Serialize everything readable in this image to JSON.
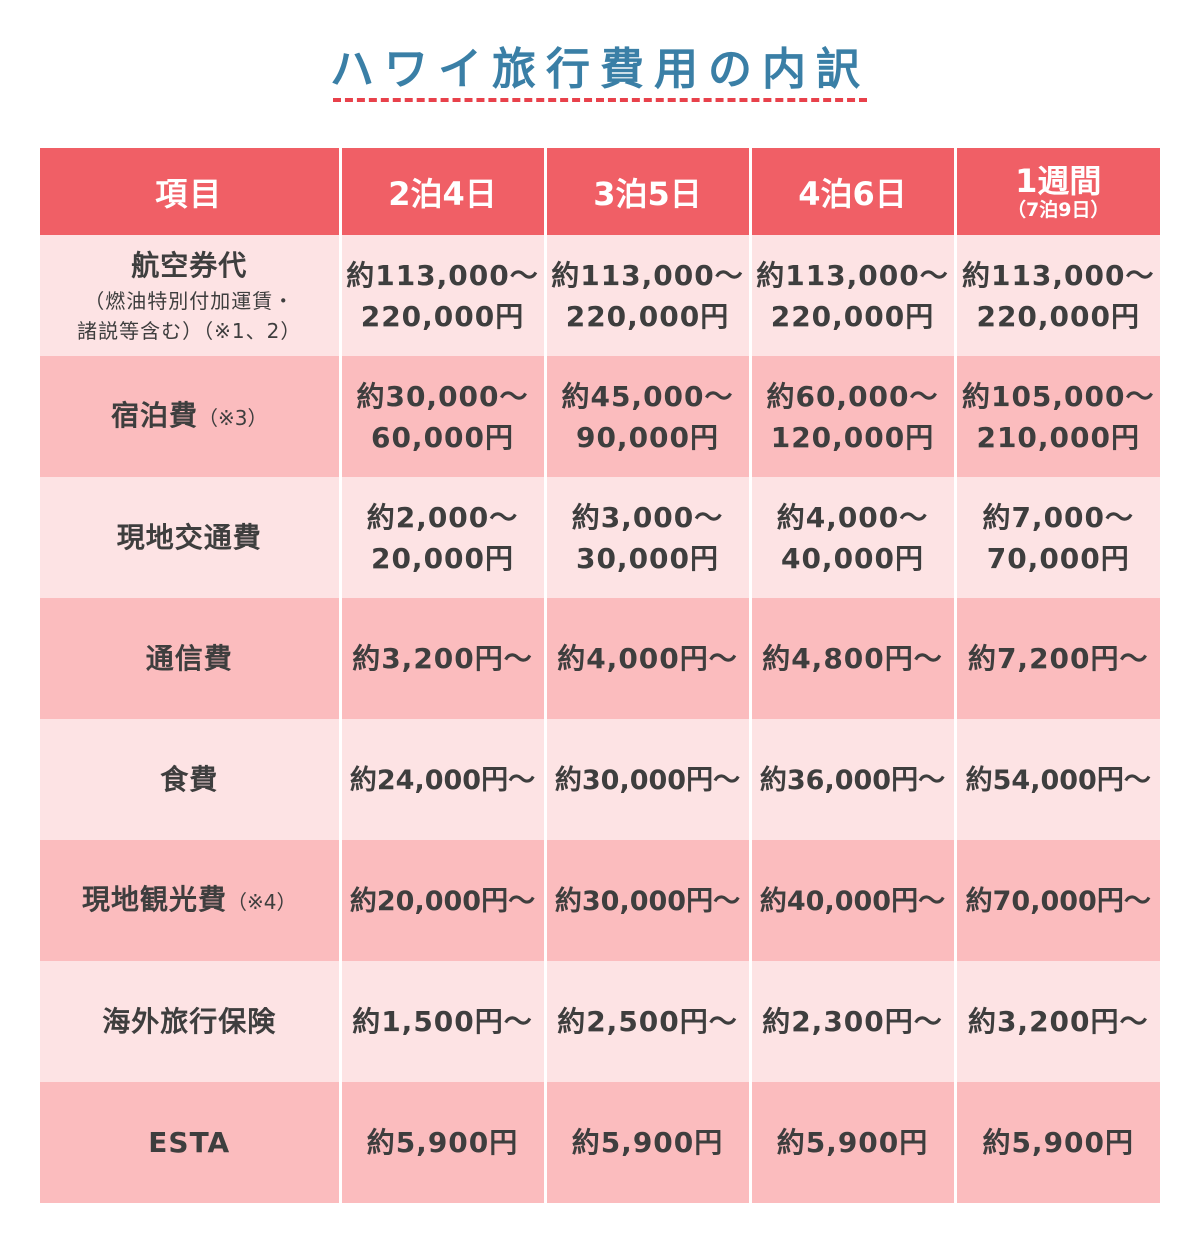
{
  "title": "ハワイ旅行費用の内訳",
  "table": {
    "header": {
      "item": "項目",
      "columns": [
        {
          "main": "2泊4日",
          "sub": ""
        },
        {
          "main": "3泊5日",
          "sub": ""
        },
        {
          "main": "4泊6日",
          "sub": ""
        },
        {
          "main": "1週間",
          "sub": "（7泊9日）"
        }
      ]
    },
    "rows": [
      {
        "item": "航空券代",
        "note": "",
        "sub_lines": [
          "（燃油特別付加運賃・",
          "諸説等含む）（※1、2）"
        ],
        "values": [
          [
            "約113,000〜",
            "220,000円"
          ],
          [
            "約113,000〜",
            "220,000円"
          ],
          [
            "約113,000〜",
            "220,000円"
          ],
          [
            "約113,000〜",
            "220,000円"
          ]
        ]
      },
      {
        "item": "宿泊費",
        "note": "（※3）",
        "sub_lines": [],
        "values": [
          [
            "約30,000〜",
            "60,000円"
          ],
          [
            "約45,000〜",
            "90,000円"
          ],
          [
            "約60,000〜",
            "120,000円"
          ],
          [
            "約105,000〜",
            "210,000円"
          ]
        ]
      },
      {
        "item": "現地交通費",
        "note": "",
        "sub_lines": [],
        "values": [
          [
            "約2,000〜",
            "20,000円"
          ],
          [
            "約3,000〜",
            "30,000円"
          ],
          [
            "約4,000〜",
            "40,000円"
          ],
          [
            "約7,000〜",
            "70,000円"
          ]
        ]
      },
      {
        "item": "通信費",
        "note": "",
        "sub_lines": [],
        "values": [
          [
            "約3,200円〜"
          ],
          [
            "約4,000円〜"
          ],
          [
            "約4,800円〜"
          ],
          [
            "約7,200円〜"
          ]
        ]
      },
      {
        "item": "食費",
        "note": "",
        "sub_lines": [],
        "values": [
          [
            "約24,000円〜"
          ],
          [
            "約30,000円〜"
          ],
          [
            "約36,000円〜"
          ],
          [
            "約54,000円〜"
          ]
        ]
      },
      {
        "item": "現地観光費",
        "note": "（※4）",
        "sub_lines": [],
        "values": [
          [
            "約20,000円〜"
          ],
          [
            "約30,000円〜"
          ],
          [
            "約40,000円〜"
          ],
          [
            "約70,000円〜"
          ]
        ]
      },
      {
        "item": "海外旅行保険",
        "note": "",
        "sub_lines": [],
        "values": [
          [
            "約1,500円〜"
          ],
          [
            "約2,500円〜"
          ],
          [
            "約2,300円〜"
          ],
          [
            "約3,200円〜"
          ]
        ]
      },
      {
        "item": "ESTA",
        "note": "",
        "sub_lines": [],
        "values": [
          [
            "約5,900円"
          ],
          [
            "約5,900円"
          ],
          [
            "約5,900円"
          ],
          [
            "約5,900円"
          ]
        ]
      }
    ]
  },
  "colors": {
    "title": "#3a7fa6",
    "underline": "#e8414b",
    "header_bg": "#f05f66",
    "row_light": "#fde3e4",
    "row_dark": "#fbbcbe"
  }
}
